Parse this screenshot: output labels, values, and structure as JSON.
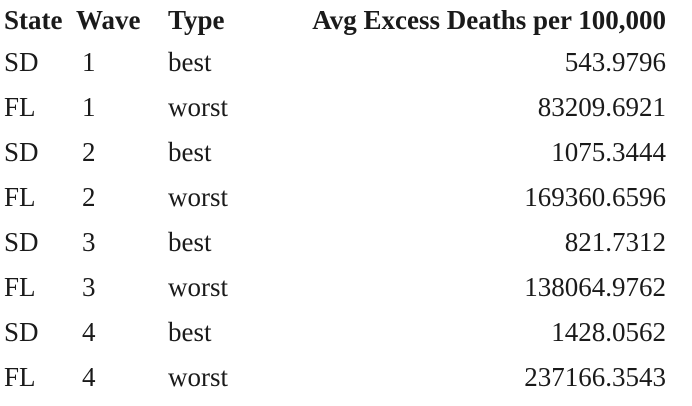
{
  "table": {
    "headers": [
      "State",
      "Wave",
      "Type",
      "Avg Excess Deaths per 100,000"
    ],
    "rows": [
      {
        "state": "SD",
        "wave": "1",
        "type": "best",
        "avg": "543.9796"
      },
      {
        "state": "FL",
        "wave": "1",
        "type": "worst",
        "avg": "83209.6921"
      },
      {
        "state": "SD",
        "wave": "2",
        "type": "best",
        "avg": "1075.3444"
      },
      {
        "state": "FL",
        "wave": "2",
        "type": "worst",
        "avg": "169360.6596"
      },
      {
        "state": "SD",
        "wave": "3",
        "type": "best",
        "avg": "821.7312"
      },
      {
        "state": "FL",
        "wave": "3",
        "type": "worst",
        "avg": "138064.9762"
      },
      {
        "state": "SD",
        "wave": "4",
        "type": "best",
        "avg": "1428.0562"
      },
      {
        "state": "FL",
        "wave": "4",
        "type": "worst",
        "avg": "237166.3543"
      }
    ]
  }
}
